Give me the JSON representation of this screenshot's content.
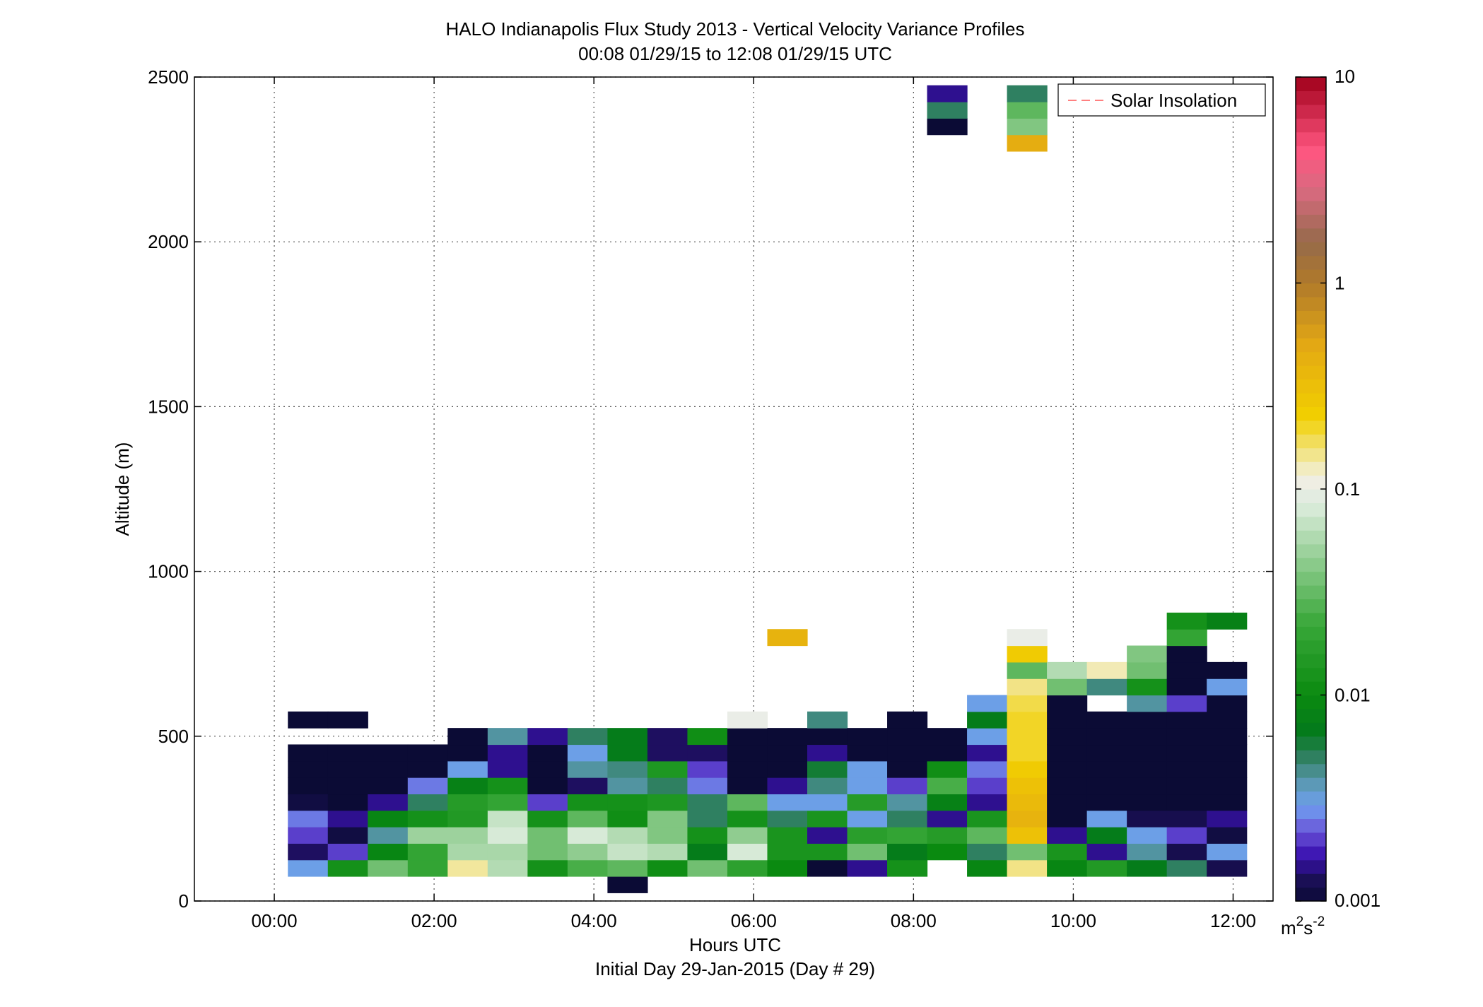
{
  "chart_data": {
    "type": "heatmap",
    "title": "HALO Indianapolis Flux Study 2013 - Vertical Velocity Variance Profiles",
    "subtitle": "00:08 01/29/15 to 12:08 01/29/15  UTC",
    "xlabel": "Hours UTC",
    "xlabel2": "Initial Day 29-Jan-2015 (Day # 29)",
    "ylabel": "Altitude (m)",
    "xlim": [
      -1,
      12.5
    ],
    "ylim": [
      0,
      2500
    ],
    "grid": true,
    "x_ticks": [
      0,
      2,
      4,
      6,
      8,
      10,
      12
    ],
    "x_tick_labels": [
      "00:00",
      "02:00",
      "04:00",
      "06:00",
      "08:00",
      "10:00",
      "12:00"
    ],
    "y_ticks": [
      0,
      500,
      1000,
      1500,
      2000,
      2500
    ],
    "y_tick_labels": [
      "0",
      "500",
      "1000",
      "1500",
      "2000",
      "2500"
    ],
    "legend": {
      "placement": "top-right",
      "entries": [
        {
          "label": "Solar Insolation",
          "style": "dashed",
          "color": "#ff8080"
        }
      ]
    },
    "colorbar": {
      "scale": "log",
      "range": [
        0.001,
        10
      ],
      "tick_values": [
        0.001,
        0.01,
        0.1,
        1,
        10
      ],
      "tick_labels": [
        "0.001",
        "0.01",
        "0.1",
        "1",
        "10"
      ],
      "units_base": "m",
      "units_sup1": "2",
      "units_mid": "s",
      "units_sup2": "-2"
    },
    "bin_width_hours": 0.5,
    "bin_height_m": 50,
    "time_bins": [
      0.17,
      0.67,
      1.17,
      1.67,
      2.17,
      2.67,
      3.17,
      3.67,
      4.17,
      4.67,
      5.17,
      5.67,
      6.17,
      6.67,
      7.17,
      7.67,
      8.17,
      8.67,
      9.17,
      9.67,
      10.17,
      10.67,
      11.17,
      11.67
    ],
    "cells": [
      {
        "t": 0.17,
        "profile": [
          [
            100,
            0.003
          ],
          [
            150,
            0.0013
          ],
          [
            200,
            0.002
          ],
          [
            250,
            0.0025
          ],
          [
            300,
            0.0011
          ],
          [
            350,
            0.001
          ],
          [
            400,
            0.001
          ],
          [
            450,
            0.001
          ]
        ]
      },
      {
        "t": 0.17,
        "profile": [
          [
            550,
            0.001
          ]
        ]
      },
      {
        "t": 0.67,
        "profile": [
          [
            100,
            0.012
          ],
          [
            150,
            0.002
          ],
          [
            200,
            0.0011
          ],
          [
            250,
            0.0015
          ],
          [
            300,
            0.001
          ],
          [
            350,
            0.001
          ],
          [
            400,
            0.001
          ],
          [
            450,
            0.001
          ],
          [
            550,
            0.001
          ]
        ]
      },
      {
        "t": 1.17,
        "profile": [
          [
            100,
            0.035
          ],
          [
            150,
            0.009
          ],
          [
            200,
            0.004
          ],
          [
            250,
            0.009
          ],
          [
            300,
            0.0015
          ],
          [
            350,
            0.001
          ],
          [
            400,
            0.001
          ],
          [
            450,
            0.001
          ]
        ]
      },
      {
        "t": 1.67,
        "profile": [
          [
            100,
            0.02
          ],
          [
            150,
            0.02
          ],
          [
            200,
            0.05
          ],
          [
            250,
            0.012
          ],
          [
            300,
            0.005
          ],
          [
            350,
            0.0025
          ],
          [
            400,
            0.001
          ],
          [
            450,
            0.001
          ]
        ]
      },
      {
        "t": 2.17,
        "profile": [
          [
            100,
            0.14
          ],
          [
            150,
            0.055
          ],
          [
            200,
            0.05
          ],
          [
            250,
            0.015
          ],
          [
            300,
            0.016
          ],
          [
            350,
            0.008
          ],
          [
            400,
            0.003
          ],
          [
            450,
            0.001
          ],
          [
            500,
            0.001
          ]
        ]
      },
      {
        "t": 2.67,
        "profile": [
          [
            100,
            0.06
          ],
          [
            150,
            0.055
          ],
          [
            200,
            0.08
          ],
          [
            250,
            0.07
          ],
          [
            300,
            0.02
          ],
          [
            350,
            0.012
          ],
          [
            400,
            0.0015
          ],
          [
            450,
            0.0015
          ],
          [
            500,
            0.004
          ]
        ]
      },
      {
        "t": 3.17,
        "profile": [
          [
            100,
            0.012
          ],
          [
            150,
            0.035
          ],
          [
            200,
            0.035
          ],
          [
            250,
            0.012
          ],
          [
            300,
            0.002
          ],
          [
            350,
            0.001
          ],
          [
            400,
            0.001
          ],
          [
            450,
            0.001
          ],
          [
            500,
            0.0015
          ]
        ]
      },
      {
        "t": 3.67,
        "profile": [
          [
            100,
            0.025
          ],
          [
            150,
            0.045
          ],
          [
            200,
            0.08
          ],
          [
            250,
            0.03
          ],
          [
            300,
            0.012
          ],
          [
            350,
            0.0013
          ],
          [
            400,
            0.004
          ],
          [
            450,
            0.003
          ],
          [
            500,
            0.005
          ]
        ]
      },
      {
        "t": 4.17,
        "profile": [
          [
            50,
            0.001
          ],
          [
            100,
            0.03
          ],
          [
            150,
            0.07
          ],
          [
            200,
            0.06
          ],
          [
            250,
            0.011
          ],
          [
            300,
            0.012
          ],
          [
            350,
            0.004
          ],
          [
            400,
            0.0045
          ],
          [
            450,
            0.007
          ],
          [
            500,
            0.007
          ]
        ]
      },
      {
        "t": 4.67,
        "profile": [
          [
            100,
            0.011
          ],
          [
            150,
            0.06
          ],
          [
            200,
            0.04
          ],
          [
            250,
            0.04
          ],
          [
            300,
            0.014
          ],
          [
            350,
            0.005
          ],
          [
            400,
            0.014
          ],
          [
            450,
            0.0013
          ],
          [
            500,
            0.0013
          ]
        ]
      },
      {
        "t": 5.17,
        "profile": [
          [
            100,
            0.035
          ],
          [
            150,
            0.007
          ],
          [
            200,
            0.012
          ],
          [
            250,
            0.005
          ],
          [
            300,
            0.005
          ],
          [
            350,
            0.0025
          ],
          [
            400,
            0.002
          ],
          [
            450,
            0.0013
          ],
          [
            500,
            0.011
          ]
        ]
      },
      {
        "t": 5.67,
        "profile": [
          [
            100,
            0.018
          ],
          [
            150,
            0.08
          ],
          [
            200,
            0.045
          ],
          [
            250,
            0.012
          ],
          [
            300,
            0.03
          ],
          [
            350,
            0.001
          ],
          [
            400,
            0.001
          ],
          [
            450,
            0.001
          ],
          [
            500,
            0.001
          ],
          [
            550,
            0.1
          ]
        ]
      },
      {
        "t": 6.17,
        "profile": [
          [
            100,
            0.01
          ],
          [
            150,
            0.013
          ],
          [
            200,
            0.013
          ],
          [
            250,
            0.005
          ],
          [
            300,
            0.003
          ],
          [
            350,
            0.0015
          ],
          [
            400,
            0.001
          ],
          [
            450,
            0.001
          ],
          [
            500,
            0.001
          ],
          [
            800,
            0.4
          ]
        ]
      },
      {
        "t": 6.67,
        "profile": [
          [
            100,
            0.001
          ],
          [
            150,
            0.013
          ],
          [
            200,
            0.0015
          ],
          [
            250,
            0.013
          ],
          [
            300,
            0.003
          ],
          [
            350,
            0.0045
          ],
          [
            400,
            0.006
          ],
          [
            450,
            0.0015
          ],
          [
            500,
            0.001
          ],
          [
            550,
            0.0045
          ]
        ]
      },
      {
        "t": 7.17,
        "profile": [
          [
            100,
            0.0015
          ],
          [
            150,
            0.035
          ],
          [
            200,
            0.017
          ],
          [
            250,
            0.003
          ],
          [
            300,
            0.016
          ],
          [
            350,
            0.003
          ],
          [
            400,
            0.003
          ],
          [
            450,
            0.001
          ],
          [
            500,
            0.001
          ]
        ]
      },
      {
        "t": 7.67,
        "profile": [
          [
            100,
            0.012
          ],
          [
            150,
            0.007
          ],
          [
            200,
            0.02
          ],
          [
            250,
            0.005
          ],
          [
            300,
            0.004
          ],
          [
            350,
            0.002
          ],
          [
            400,
            0.001
          ],
          [
            450,
            0.001
          ],
          [
            500,
            0.001
          ],
          [
            550,
            0.001
          ]
        ]
      },
      {
        "t": 8.17,
        "profile": [
          [
            150,
            0.01
          ],
          [
            200,
            0.016
          ],
          [
            250,
            0.0015
          ],
          [
            300,
            0.008
          ],
          [
            350,
            0.025
          ],
          [
            400,
            0.011
          ],
          [
            450,
            0.001
          ],
          [
            500,
            0.001
          ],
          [
            2350,
            0.001
          ],
          [
            2400,
            0.005
          ],
          [
            2450,
            0.0015
          ]
        ]
      },
      {
        "t": 8.67,
        "profile": [
          [
            100,
            0.009
          ],
          [
            150,
            0.005
          ],
          [
            200,
            0.03
          ],
          [
            250,
            0.013
          ],
          [
            300,
            0.0015
          ],
          [
            350,
            0.002
          ],
          [
            400,
            0.0025
          ],
          [
            450,
            0.0015
          ],
          [
            500,
            0.003
          ],
          [
            550,
            0.007
          ],
          [
            600,
            0.003
          ]
        ]
      },
      {
        "t": 9.17,
        "profile": [
          [
            100,
            0.15
          ],
          [
            150,
            0.035
          ],
          [
            200,
            0.3
          ],
          [
            250,
            0.4
          ],
          [
            300,
            0.35
          ],
          [
            350,
            0.3
          ],
          [
            400,
            0.25
          ],
          [
            450,
            0.2
          ],
          [
            500,
            0.2
          ],
          [
            550,
            0.2
          ],
          [
            600,
            0.18
          ],
          [
            650,
            0.15
          ],
          [
            700,
            0.03
          ],
          [
            750,
            0.25
          ],
          [
            800,
            0.1
          ],
          [
            2300,
            0.45
          ],
          [
            2350,
            0.04
          ],
          [
            2400,
            0.03
          ],
          [
            2450,
            0.005
          ]
        ]
      },
      {
        "t": 9.67,
        "profile": [
          [
            100,
            0.009
          ],
          [
            150,
            0.013
          ],
          [
            200,
            0.0015
          ],
          [
            250,
            0.001
          ],
          [
            300,
            0.001
          ],
          [
            350,
            0.001
          ],
          [
            400,
            0.001
          ],
          [
            450,
            0.001
          ],
          [
            500,
            0.001
          ],
          [
            550,
            0.001
          ],
          [
            600,
            0.001
          ],
          [
            650,
            0.035
          ],
          [
            700,
            0.06
          ]
        ]
      },
      {
        "t": 10.17,
        "profile": [
          [
            100,
            0.015
          ],
          [
            150,
            0.0015
          ],
          [
            200,
            0.007
          ],
          [
            250,
            0.003
          ],
          [
            300,
            0.001
          ],
          [
            350,
            0.001
          ],
          [
            400,
            0.001
          ],
          [
            450,
            0.001
          ],
          [
            500,
            0.001
          ],
          [
            550,
            0.001
          ],
          [
            650,
            0.0045
          ],
          [
            700,
            0.13
          ]
        ]
      },
      {
        "t": 10.67,
        "profile": [
          [
            100,
            0.007
          ],
          [
            150,
            0.004
          ],
          [
            200,
            0.003
          ],
          [
            250,
            0.0012
          ],
          [
            300,
            0.001
          ],
          [
            350,
            0.001
          ],
          [
            400,
            0.001
          ],
          [
            450,
            0.001
          ],
          [
            500,
            0.001
          ],
          [
            550,
            0.001
          ],
          [
            600,
            0.004
          ],
          [
            650,
            0.012
          ],
          [
            700,
            0.035
          ],
          [
            750,
            0.04
          ]
        ]
      },
      {
        "t": 11.17,
        "profile": [
          [
            100,
            0.005
          ],
          [
            150,
            0.0012
          ],
          [
            200,
            0.002
          ],
          [
            250,
            0.0012
          ],
          [
            300,
            0.001
          ],
          [
            350,
            0.001
          ],
          [
            400,
            0.001
          ],
          [
            450,
            0.001
          ],
          [
            500,
            0.001
          ],
          [
            550,
            0.001
          ],
          [
            600,
            0.002
          ],
          [
            650,
            0.001
          ],
          [
            700,
            0.001
          ],
          [
            750,
            0.001
          ],
          [
            800,
            0.02
          ],
          [
            850,
            0.012
          ]
        ]
      },
      {
        "t": 11.67,
        "profile": [
          [
            100,
            0.0012
          ],
          [
            150,
            0.003
          ],
          [
            200,
            0.0011
          ],
          [
            250,
            0.0015
          ],
          [
            300,
            0.001
          ],
          [
            350,
            0.001
          ],
          [
            400,
            0.001
          ],
          [
            450,
            0.001
          ],
          [
            500,
            0.001
          ],
          [
            550,
            0.001
          ],
          [
            600,
            0.001
          ],
          [
            650,
            0.003
          ],
          [
            700,
            0.001
          ],
          [
            850,
            0.008
          ]
        ]
      }
    ]
  }
}
